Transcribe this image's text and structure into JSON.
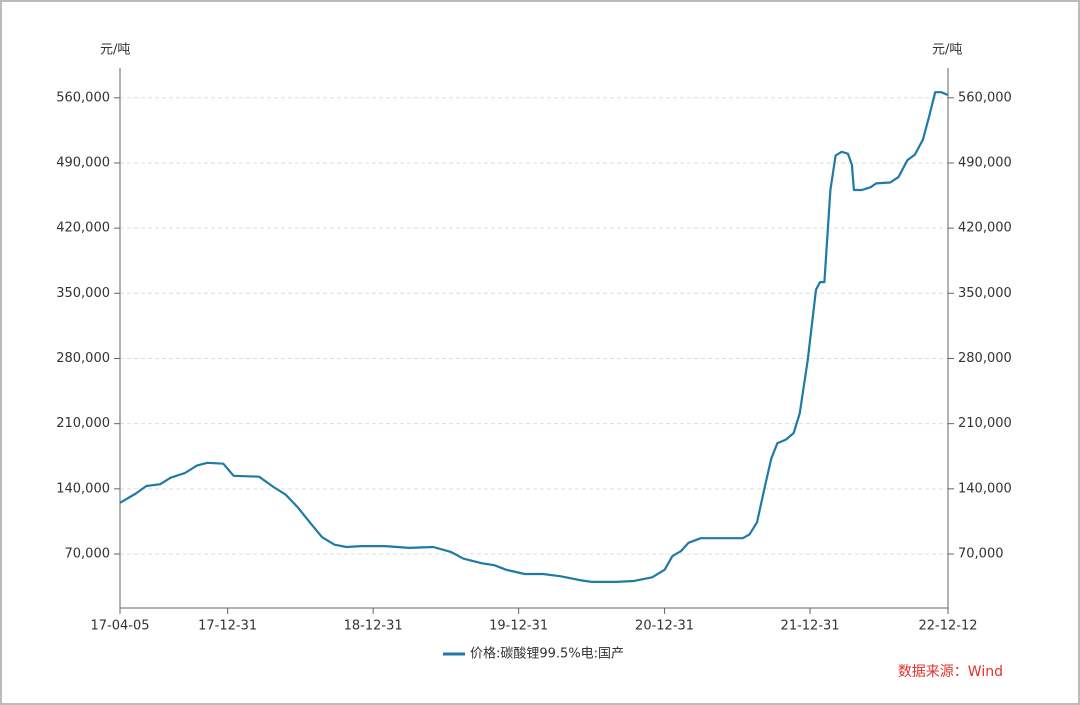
{
  "chart_data": {
    "type": "line",
    "y_label": "元/吨",
    "y2_label": "元/吨",
    "source": "数据来源：Wind",
    "x": [
      "17-04-05",
      "17-05-15",
      "17-06-10",
      "17-07-15",
      "17-08-10",
      "17-09-15",
      "17-10-15",
      "17-11-10",
      "17-12-20",
      "18-01-15",
      "18-03-20",
      "18-04-25",
      "18-05-25",
      "18-06-25",
      "18-07-25",
      "18-08-25",
      "18-09-25",
      "18-10-25",
      "18-12-01",
      "19-01-31",
      "19-03-31",
      "19-05-31",
      "19-07-15",
      "19-08-15",
      "19-09-30",
      "19-10-31",
      "19-11-30",
      "20-01-15",
      "20-03-01",
      "20-04-15",
      "20-06-01",
      "20-07-01",
      "20-09-01",
      "20-10-15",
      "20-11-30",
      "20-12-31",
      "21-01-20",
      "21-02-10",
      "21-03-01",
      "21-04-01",
      "21-05-01",
      "21-06-01",
      "21-07-15",
      "21-08-01",
      "21-08-20",
      "21-09-10",
      "21-09-25",
      "21-10-10",
      "21-11-01",
      "21-11-20",
      "21-12-05",
      "21-12-25",
      "22-01-15",
      "22-01-25",
      "22-02-05",
      "22-02-20",
      "22-03-05",
      "22-03-20",
      "22-04-05",
      "22-04-15",
      "22-04-20",
      "22-05-10",
      "22-06-01",
      "22-06-15",
      "22-07-20",
      "22-08-10",
      "22-09-01",
      "22-09-20",
      "22-10-10",
      "22-10-25",
      "22-11-10",
      "22-11-25",
      "22-12-12"
    ],
    "series": [
      {
        "name": "价格:碳酸锂99.5%电:国产",
        "color": "#1f7aa6",
        "values": [
          125000,
          135000,
          143000,
          145000,
          152000,
          157000,
          165000,
          168000,
          167000,
          154000,
          153000,
          142000,
          134000,
          120000,
          104000,
          88000,
          80000,
          77500,
          78500,
          78500,
          76500,
          77500,
          72000,
          65000,
          60000,
          58000,
          53000,
          48500,
          48500,
          46000,
          42000,
          40000,
          40000,
          41000,
          45000,
          53000,
          68000,
          73000,
          82000,
          87000,
          87000,
          87000,
          87000,
          91000,
          104000,
          145000,
          173000,
          189000,
          193000,
          200000,
          221000,
          278000,
          354000,
          362000,
          362000,
          461000,
          498000,
          502000,
          500000,
          488000,
          461000,
          461000,
          464000,
          468000,
          469000,
          475000,
          493000,
          499000,
          515000,
          539000,
          566000,
          566000,
          563000
        ]
      }
    ],
    "xlim": [
      "17-04-05",
      "22-12-12"
    ],
    "xticks": [
      "17-04-05",
      "17-12-31",
      "18-12-31",
      "19-12-31",
      "20-12-31",
      "21-12-31",
      "22-12-12"
    ],
    "ylim": [
      12000,
      592000
    ],
    "yticks": [
      {
        "value": 70000,
        "label": "70,000"
      },
      {
        "value": 140000,
        "label": "140,000"
      },
      {
        "value": 210000,
        "label": "210,000"
      },
      {
        "value": 280000,
        "label": "280,000"
      },
      {
        "value": 350000,
        "label": "350,000"
      },
      {
        "value": 420000,
        "label": "420,000"
      },
      {
        "value": 490000,
        "label": "490,000"
      },
      {
        "value": 560000,
        "label": "560,000"
      }
    ],
    "y2lim": [
      12000,
      592000
    ],
    "y2ticks": [
      {
        "value": 70000,
        "label": "70,000"
      },
      {
        "value": 140000,
        "label": "140,000"
      },
      {
        "value": 210000,
        "label": "210,000"
      },
      {
        "value": 280000,
        "label": "280,000"
      },
      {
        "value": 350000,
        "label": "350,000"
      },
      {
        "value": 420000,
        "label": "420,000"
      },
      {
        "value": 490000,
        "label": "490,000"
      },
      {
        "value": 560000,
        "label": "560,000"
      }
    ],
    "grid": true
  }
}
